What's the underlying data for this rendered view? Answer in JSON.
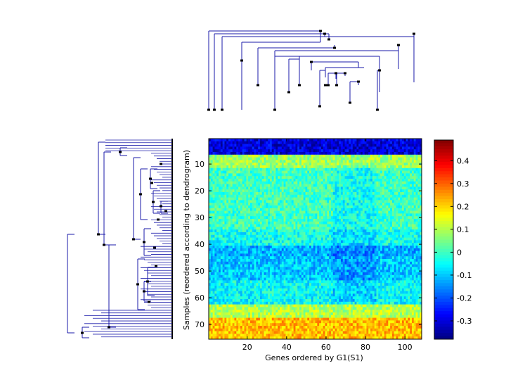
{
  "chart_data": {
    "type": "heatmap",
    "title": "",
    "xlabel": "Genes ordered by G1(S1)",
    "ylabel": "Samples (reordered according to dendrogram)",
    "xlim": [
      1,
      108
    ],
    "ylim": [
      1,
      75
    ],
    "n_genes": 108,
    "n_samples": 75,
    "x_ticks": [
      20,
      40,
      60,
      80,
      100
    ],
    "y_ticks": [
      10,
      20,
      30,
      40,
      50,
      60,
      70
    ],
    "colormap": "jet",
    "colorbar": {
      "range": [
        -0.38,
        0.49
      ],
      "ticks": [
        -0.3,
        -0.2,
        -0.1,
        0,
        0.1,
        0.2,
        0.3,
        0.4
      ],
      "tick_labels": [
        "-0.3",
        "-0.2",
        "-0.1",
        "0",
        "0.1",
        "0.2",
        "0.3",
        "0.4"
      ]
    },
    "row_profile": [
      {
        "rows": [
          1,
          6
        ],
        "value": -0.3
      },
      {
        "rows": [
          7,
          11
        ],
        "value": 0.08
      },
      {
        "rows": [
          12,
          34
        ],
        "value": 0.0
      },
      {
        "rows": [
          35,
          40
        ],
        "value": -0.04
      },
      {
        "rows": [
          41,
          44
        ],
        "value": -0.12
      },
      {
        "rows": [
          45,
          53
        ],
        "value": -0.1
      },
      {
        "rows": [
          54,
          62
        ],
        "value": -0.05
      },
      {
        "rows": [
          63,
          67
        ],
        "value": 0.1
      },
      {
        "rows": [
          68,
          75
        ],
        "value": 0.22
      }
    ],
    "dendrograms": {
      "top": "gene clustering tree (leaves along x)",
      "left": "sample clustering tree (leaves along y)"
    }
  }
}
